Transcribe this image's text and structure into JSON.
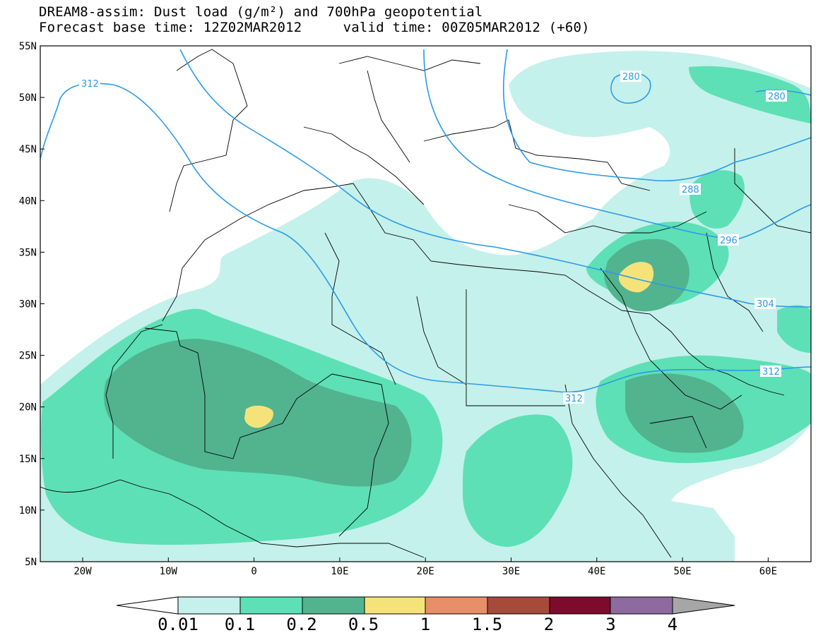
{
  "title": {
    "line1": "DREAM8-assim: Dust load (g/m²) and 700hPa geopotential",
    "line2": "Forecast base time: 12Z02MAR2012     valid time: 00Z05MAR2012 (+60)"
  },
  "axes": {
    "lat_labels": [
      "55N",
      "50N",
      "45N",
      "40N",
      "35N",
      "30N",
      "25N",
      "20N",
      "15N",
      "10N",
      "5N"
    ],
    "lon_labels": [
      "20W",
      "10W",
      "0",
      "10E",
      "20E",
      "30E",
      "40E",
      "50E",
      "60E"
    ]
  },
  "contour_labels": [
    "312",
    "280",
    "280",
    "288",
    "296",
    "304",
    "312",
    "312"
  ],
  "colorbar": {
    "labels": [
      "0.01",
      "0.1",
      "0.2",
      "0.5",
      "1",
      "1.5",
      "2",
      "3",
      "4"
    ],
    "colors": [
      "#ffffff",
      "#c4f1eb",
      "#5de0b5",
      "#52b38f",
      "#f5e37a",
      "#e88e69",
      "#a64a3c",
      "#7c0b2d",
      "#8e6aa0",
      "#a6a6a6"
    ]
  },
  "legend_colors": {
    "dust_0_01": "#c4f1eb",
    "dust_0_1": "#5de0b5",
    "dust_0_2": "#52b38f",
    "dust_0_5": "#f5e37a",
    "contour_line": "#2b9ae8"
  }
}
